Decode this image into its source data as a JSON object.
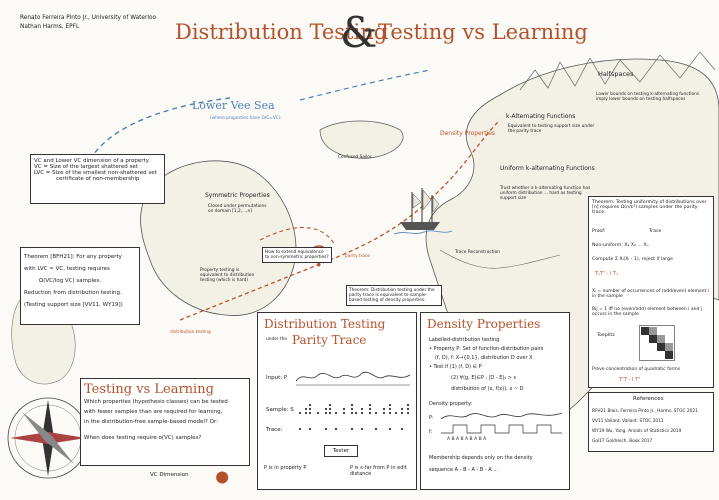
{
  "header": {
    "authors": "Renato Ferreira Pinto Jr., University of Waterloo",
    "authors2": "Nathan Harms, EPFL",
    "title_left": "Distribution Testing",
    "ampersand": "&",
    "title_right": "Testing vs Learning"
  },
  "map_labels": {
    "lower_vee_sea": "Lower Vee Sea",
    "lower_vee_sub": "(where properties have LVC=VC)",
    "halfspaces": "Halfspaces",
    "halfspaces_note": "Lower bounds on testing k-alternating functions imply lower bounds on testing halfspaces",
    "k_alternating": "k-Alternating Functions",
    "k_alternating_note": "Equivalent to testing support size under the parity trace",
    "density_properties": "Density Properties",
    "uniform_k_alt": "Uniform k-alternating Functions",
    "uniform_k_alt_note": "Trust whether a k-alternating function has uniform distribution ... hard as testing support size",
    "confused_sailor": "Confused Sailor",
    "symmetric_properties": "Symmetric Properties",
    "symmetric_note": "Closed under permutations on domain [1,2,...,n]",
    "equivalent_note": "Property testing is equivalent to distribution testing (which is hard)",
    "question_box": "How to extend equivalence to non-symmetric properties?",
    "parity_trace": "parity trace",
    "distribution_testing_path": "distribution testing",
    "trace_reconstruction": "Trace Reconstruction",
    "theorem_parity": "Theorem: Distribution testing under the parity trace is equivalent to sample-based testing of density properties.",
    "vc_dimension_label": "VC Dimension"
  },
  "vc_box": {
    "line1": "VC and Lower VC dimension of a property",
    "line2": "VC = Size of the largest shattered set",
    "line3": "LVC = Size of the smallest non-shattered set",
    "line4": "certificate of non-membership"
  },
  "theorem_box": {
    "line1": "Theorem [BFH21]: For any property",
    "line2": "with LVC ≈ VC, testing requires",
    "line3": "Ω(VC/log VC) samples.",
    "line4": "Reduction from distribution testing.",
    "line5": "(Testing support size [VV11, WY19])"
  },
  "tvl_box": {
    "title": "Testing vs Learning",
    "line1": "Which properties (hypothesis classes) can be tested",
    "line2": "with fewer samples than are required for learning,",
    "line3": "in the distribution-free sample-based model? Or:",
    "line4": "When does testing require o(VC) samples?"
  },
  "dt_box": {
    "title1": "Distribution Testing",
    "under_the": "under the",
    "title2": "Parity Trace",
    "input": "Input: P",
    "sample": "Sample: S",
    "trace": "Trace:",
    "tester": "Tester",
    "result_left": "P is in property P",
    "result_right": "P is ε-far from P in edit distance"
  },
  "dp_box": {
    "title": "Density Properties",
    "l1": "Labelled-distribution testing",
    "l2": "• Property P: Set of function-distribution pairs",
    "l3": "(f, D), f: X→{0,1}, distribution D over X",
    "l4": "• Test if (1) (f, D) ∈ P",
    "l5": "(2) ∀(g, E)∈P : |D - E|₁ > ε",
    "l6": "distribution of (x, f(x)), x ~ D",
    "density_property": "Density property:",
    "p_label": "P:",
    "f_label": "f:",
    "ab_seq": "A  B  A  B  A  B  A  B  A",
    "membership": "Membership depends only on the density",
    "sequence": "sequence  A - B - A - B - A ..."
  },
  "right_panel": {
    "theorem": "Theorem: Testing uniformity of distributions over [n] requires Ω(n/ε²) samples under the parity trace.",
    "proof": "Proof:",
    "trace_label": "Trace",
    "non_uniform": "Non-uniform: X₁  X₂  ...  Xₙ",
    "compute": "Compute Σ Xᵢ(Xᵢ - 1), reject if large",
    "tvt": "T₁Tᵀ - I T₁",
    "xi_def": "Xᵢ = number of occurrences of (odd/even) element i in the sample",
    "bij": "Bij = 1 iff no (even/odd) element between i and j occurs in the sample",
    "toeplitz": "Toeplitz",
    "prove": "Prove concentration of quadratic forms",
    "tt": "TᵀT - I Tᵀ",
    "references_title": "References",
    "refs": [
      "BFH21  Blais, Ferreira Pinto Jr., Harms. STOC 2021",
      "VV11   Valiant, Valiant. STOC 2011",
      "WY19   Wu, Yang. Annals of Statistics 2019",
      "Gol17  Goldreich. Book 2017"
    ]
  },
  "colors": {
    "accent": "#b5512a",
    "blue": "#4d7fb9",
    "ink": "#222222"
  }
}
